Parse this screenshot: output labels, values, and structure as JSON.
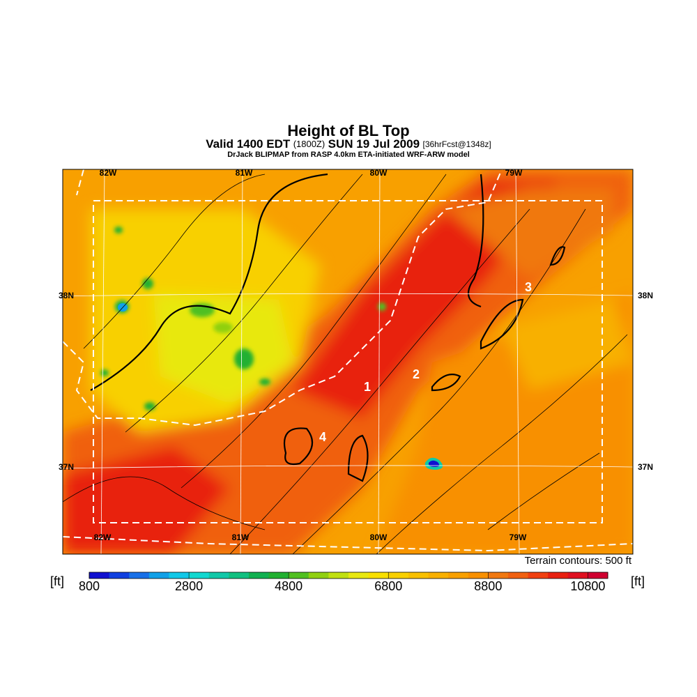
{
  "title": "Height of BL Top",
  "subtitle": {
    "valid": "Valid 1400 EDT",
    "utc": "(1800Z)",
    "date": "SUN 19 Jul 2009",
    "forecast": "[36hrFcst@1348z]"
  },
  "source": "DrJack BLIPMAP from RASP 4.0km ETA-initiated WRF-ARW model",
  "map": {
    "lon_labels": [
      "82W",
      "81W",
      "80W",
      "79W"
    ],
    "lat_labels": [
      "38N",
      "37N"
    ],
    "sites": [
      "1",
      "2",
      "3",
      "4"
    ],
    "note": "Terrain contours: 500 ft"
  },
  "colorbar": {
    "unit": "[ft]",
    "range": [
      800,
      11200
    ],
    "ticks": [
      800,
      2800,
      4800,
      6800,
      8800,
      10800
    ],
    "colors": [
      "#1010d0",
      "#1040e0",
      "#1870e8",
      "#10a0e8",
      "#10c8e8",
      "#10d8d0",
      "#10c8a8",
      "#10c080",
      "#10b050",
      "#20b030",
      "#50c020",
      "#90d010",
      "#c0e010",
      "#e8e810",
      "#f8e000",
      "#f8d000",
      "#f8c000",
      "#f8b000",
      "#f8a000",
      "#f89000",
      "#f07810",
      "#f06010",
      "#f04010",
      "#e82010",
      "#e01020",
      "#d00030"
    ]
  }
}
